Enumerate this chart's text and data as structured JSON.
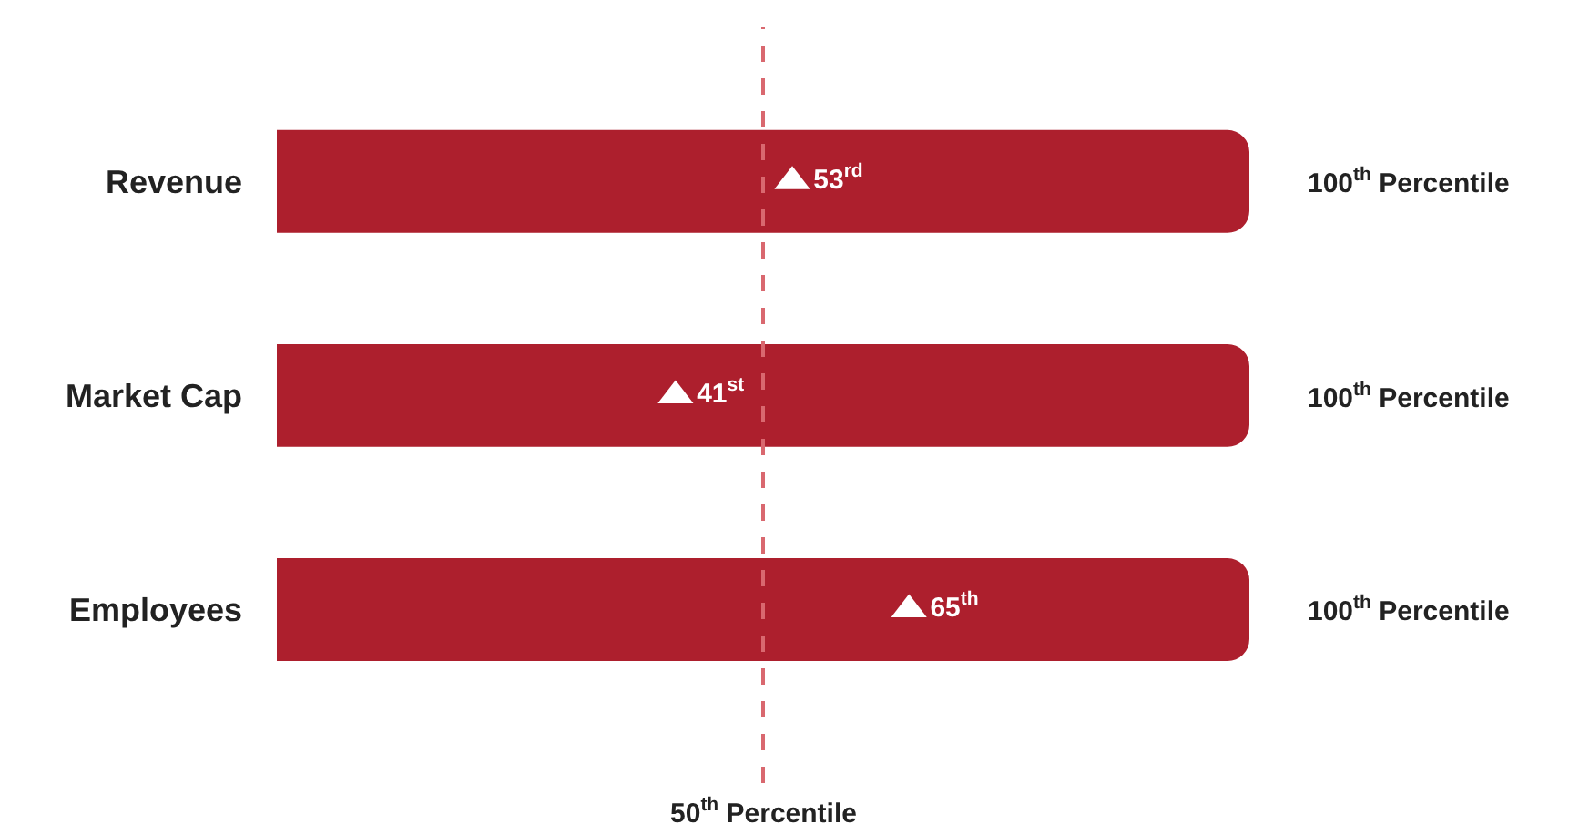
{
  "chart_data": {
    "type": "bar",
    "orientation": "horizontal",
    "categories": [
      "Revenue",
      "Market Cap",
      "Employees"
    ],
    "xlim": [
      0,
      100
    ],
    "tick_labels": "y",
    "series": [
      {
        "color": "#ad1f2d",
        "values": [
          100,
          100,
          100
        ],
        "value_labels": [
          "100$^{th}$ Percentile",
          "100$^{th}$ Percentile",
          "100$^{th}$ Percentile"
        ]
      },
      {
        "type": "scatter",
        "marker": "triangle",
        "color": "#ffffff",
        "values": [
          53,
          41,
          65
        ],
        "value_labels": [
          "53$^{rd}$",
          "41$^{st}$",
          "65$^{th}$"
        ]
      }
    ],
    "ref_lines": [
      {
        "axis": "x",
        "value": 50,
        "label": "50$^{th}$ Percentile",
        "color": "#d9686f",
        "line_style": "dashed"
      }
    ]
  }
}
